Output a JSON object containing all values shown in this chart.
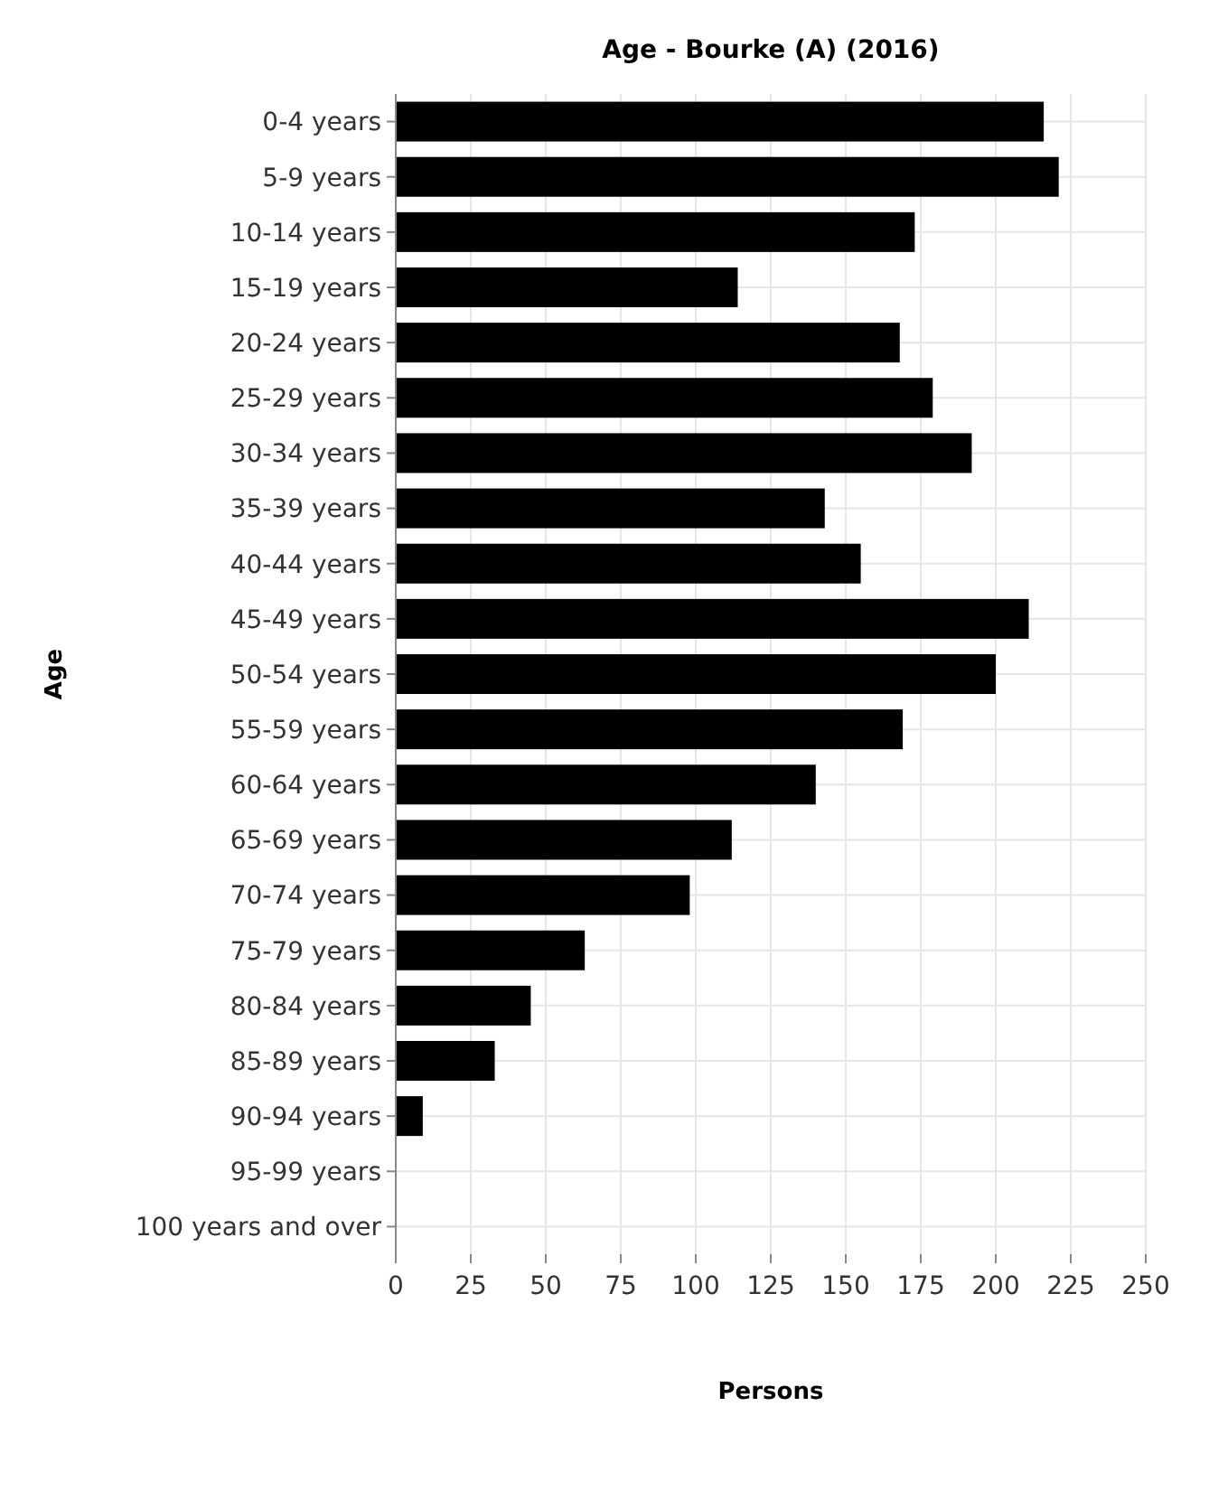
{
  "chart_data": {
    "type": "bar",
    "orientation": "horizontal",
    "title": "Age - Bourke (A) (2016)",
    "xlabel": "Persons",
    "ylabel": "Age",
    "categories": [
      "0-4 years",
      "5-9 years",
      "10-14 years",
      "15-19 years",
      "20-24 years",
      "25-29 years",
      "30-34 years",
      "35-39 years",
      "40-44 years",
      "45-49 years",
      "50-54 years",
      "55-59 years",
      "60-64 years",
      "65-69 years",
      "70-74 years",
      "75-79 years",
      "80-84 years",
      "85-89 years",
      "90-94 years",
      "95-99 years",
      "100 years and over"
    ],
    "values": [
      216,
      221,
      173,
      114,
      168,
      179,
      192,
      143,
      155,
      211,
      200,
      169,
      140,
      112,
      98,
      63,
      45,
      33,
      9,
      0,
      0
    ],
    "color": "#000000",
    "xlim": [
      0,
      250
    ],
    "xticks": [
      0,
      25,
      50,
      75,
      100,
      125,
      150,
      175,
      200,
      225,
      250
    ],
    "grid": true
  }
}
